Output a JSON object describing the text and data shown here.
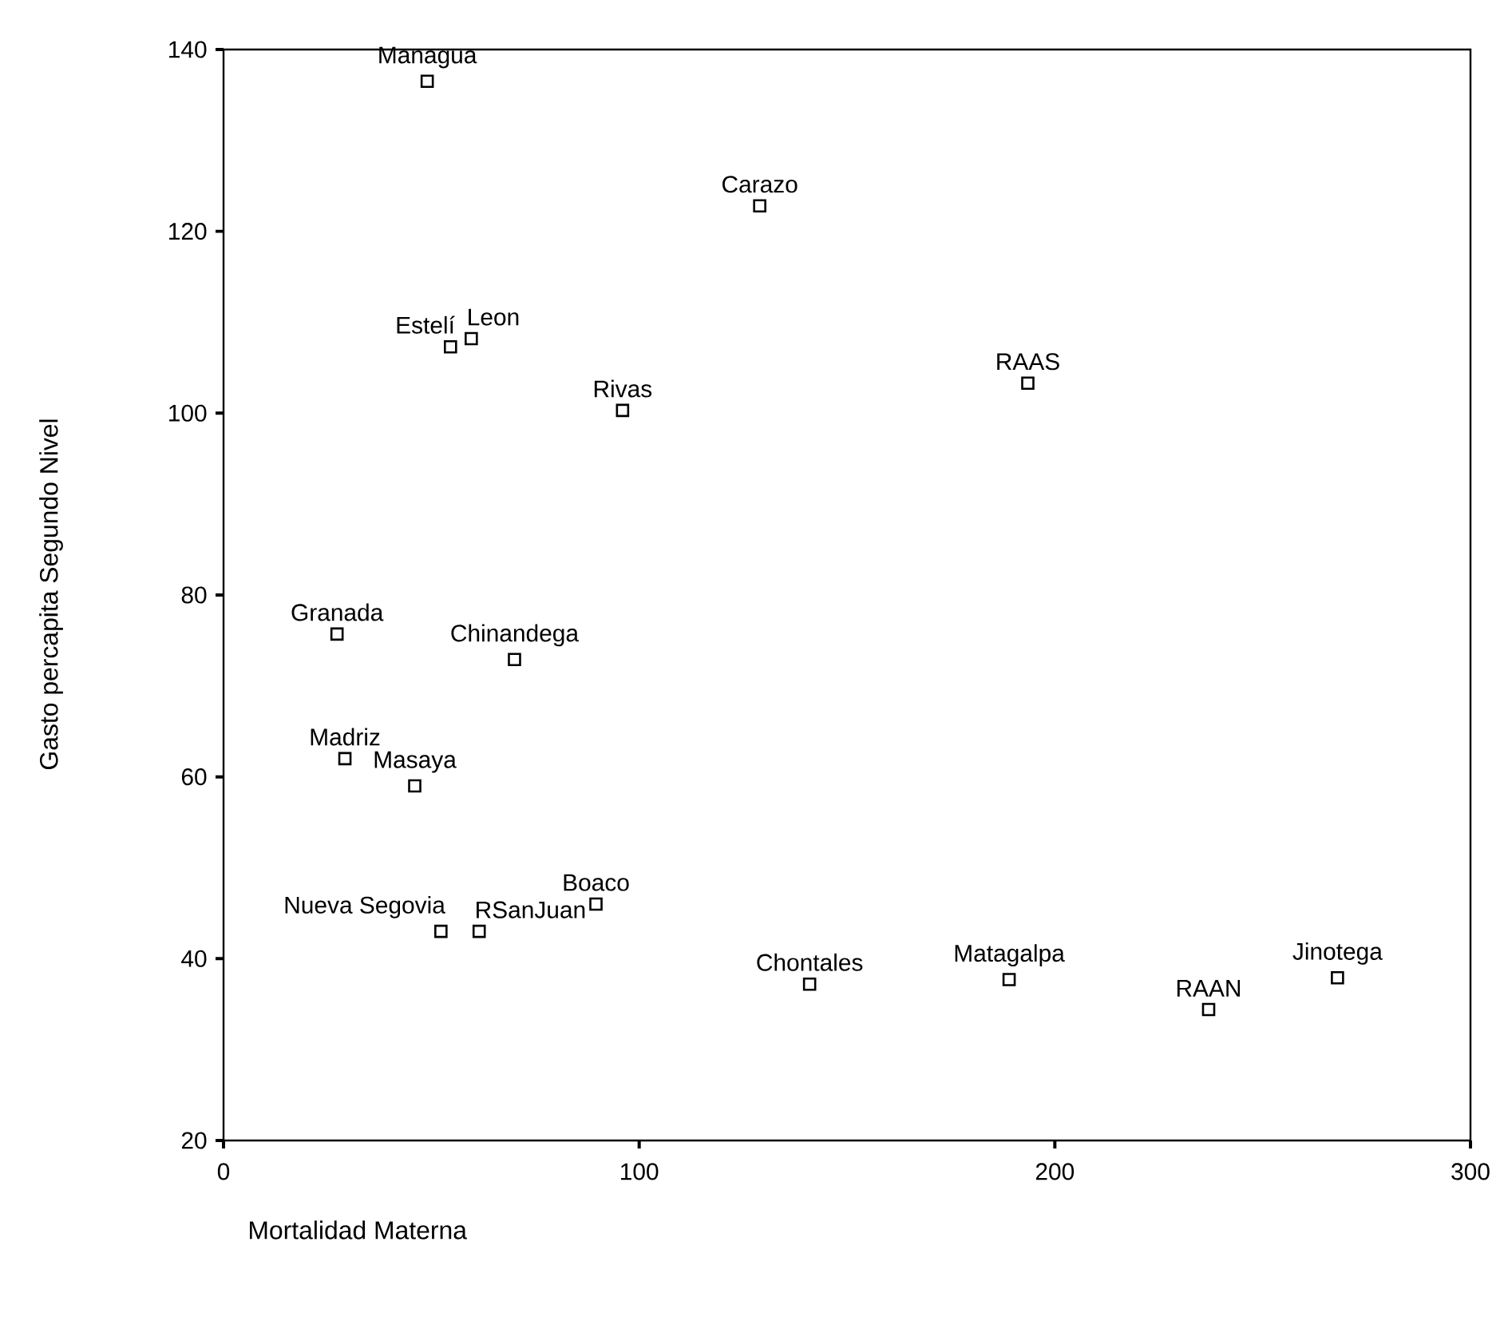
{
  "chart_data": {
    "type": "scatter",
    "xlabel": "Mortalidad Materna",
    "ylabel": "Gasto percapita Segundo Nivel",
    "xlim": [
      0,
      300
    ],
    "ylim": [
      20,
      140
    ],
    "xticks": [
      0,
      100,
      200,
      300
    ],
    "yticks": [
      20,
      40,
      60,
      80,
      100,
      120,
      140
    ],
    "marker": "square",
    "series": [
      {
        "color": "#000000",
        "x": [
          49,
          129,
          54.6,
          59.6,
          96,
          193.5,
          27.3,
          70,
          29.2,
          46,
          52.3,
          61.5,
          89.6,
          141,
          189,
          237,
          268
        ],
        "values": [
          136.5,
          122.8,
          107.3,
          108.2,
          100.3,
          103.3,
          75.7,
          72.9,
          62,
          59,
          43,
          43,
          46,
          37.2,
          37.7,
          34.4,
          37.9
        ]
      }
    ],
    "annotations": [
      {
        "text": "Managua",
        "x": 49,
        "y": 136.5
      },
      {
        "text": "Carazo",
        "x": 129,
        "y": 122.8
      },
      {
        "text": "Estelí",
        "x": 54.6,
        "y": 107.3
      },
      {
        "text": "Leon",
        "x": 59.6,
        "y": 108.2
      },
      {
        "text": "Rivas",
        "x": 96,
        "y": 100.3
      },
      {
        "text": "RAAS",
        "x": 193.5,
        "y": 103.3
      },
      {
        "text": "Granada",
        "x": 27.3,
        "y": 75.7
      },
      {
        "text": "Chinandega",
        "x": 70,
        "y": 72.9
      },
      {
        "text": "Madriz",
        "x": 29.2,
        "y": 62
      },
      {
        "text": "Masaya",
        "x": 46,
        "y": 59
      },
      {
        "text": "Nueva Segovia",
        "x": 52.3,
        "y": 43
      },
      {
        "text": "RSanJuan",
        "x": 61.5,
        "y": 43
      },
      {
        "text": "Boaco",
        "x": 89.6,
        "y": 46
      },
      {
        "text": "Chontales",
        "x": 141,
        "y": 37.2
      },
      {
        "text": "Matagalpa",
        "x": 189,
        "y": 37.7
      },
      {
        "text": "RAAN",
        "x": 237,
        "y": 34.4
      },
      {
        "text": "Jinotega",
        "x": 268,
        "y": 37.9
      }
    ]
  }
}
